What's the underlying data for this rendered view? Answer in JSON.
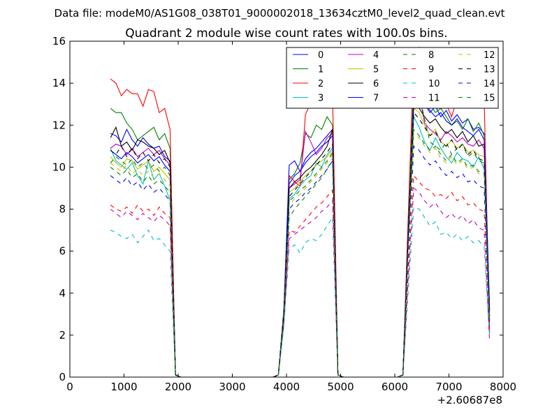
{
  "figure": {
    "suptitle": "Data file: modeM0/AS1G08_038T01_9000002018_13634cztM0_level2_quad_clean.evt",
    "offset_label": "+2.60687e8"
  },
  "chart_data": {
    "type": "line",
    "title": "Quadrant 2 module wise count rates with 100.0s bins.",
    "xlabel": "",
    "ylabel": "",
    "xlim": [
      0,
      8000
    ],
    "ylim": [
      0,
      16
    ],
    "x_offset": 260687000,
    "xticks": [
      0,
      1000,
      2000,
      3000,
      4000,
      5000,
      6000,
      7000,
      8000
    ],
    "yticks": [
      0,
      2,
      4,
      6,
      8,
      10,
      12,
      14,
      16
    ],
    "grid": false,
    "legend_position": "top-right",
    "legend_columns": 4,
    "x": [
      750,
      850,
      950,
      1050,
      1150,
      1250,
      1350,
      1450,
      1550,
      1650,
      1750,
      1850,
      1950,
      2050,
      2150,
      2250,
      2350,
      2450,
      2550,
      2650,
      2750,
      2850,
      2950,
      3050,
      3150,
      3250,
      3350,
      3450,
      3550,
      3650,
      3750,
      3850,
      3950,
      4050,
      4150,
      4250,
      4350,
      4450,
      4550,
      4650,
      4750,
      4850,
      4950,
      5050,
      5150,
      5250,
      5350,
      5450,
      5550,
      5650,
      5750,
      5850,
      5950,
      6050,
      6150,
      6250,
      6350,
      6450,
      6550,
      6650,
      6750,
      6850,
      6950,
      7050,
      7150,
      7250,
      7350,
      7450,
      7550,
      7650,
      7750
    ],
    "series": [
      {
        "name": "0",
        "color": "#0000ff",
        "dash": "solid",
        "values": [
          11.6,
          11.5,
          11.2,
          11.8,
          11.3,
          11.0,
          11.4,
          11.1,
          10.9,
          11.0,
          10.5,
          10.3,
          0.1,
          0,
          0,
          0,
          0,
          0,
          0,
          0,
          0,
          0,
          0,
          0,
          0,
          0,
          0,
          0,
          0,
          0,
          0,
          0.1,
          3.0,
          9.2,
          9.6,
          9.8,
          10.4,
          10.7,
          10.9,
          11.2,
          11.5,
          11.8,
          0.1,
          0,
          0,
          0,
          0,
          0,
          0,
          0,
          0,
          0,
          0,
          0,
          0.1,
          7.0,
          13.4,
          13.8,
          13.0,
          12.6,
          12.9,
          12.4,
          12.7,
          12.2,
          12.5,
          12.1,
          12.3,
          11.8,
          11.9,
          11.6,
          3.2
        ]
      },
      {
        "name": "1",
        "color": "#008000",
        "dash": "solid",
        "values": [
          12.8,
          12.6,
          12.6,
          12.1,
          11.8,
          11.3,
          11.5,
          11.7,
          11.9,
          11.3,
          11.6,
          10.9,
          0.1,
          0,
          0,
          0,
          0,
          0,
          0,
          0,
          0,
          0,
          0,
          0,
          0,
          0,
          0,
          0,
          0,
          0,
          0,
          0.1,
          3.2,
          9.4,
          9.7,
          10.2,
          11.6,
          11.4,
          12.0,
          11.8,
          12.4,
          12.0,
          0.1,
          0,
          0,
          0,
          0,
          0,
          0,
          0,
          0,
          0,
          0,
          0,
          0.1,
          7.2,
          14.0,
          13.6,
          13.2,
          13.0,
          12.6,
          12.8,
          12.4,
          12.0,
          12.2,
          11.8,
          12.3,
          11.7,
          12.1,
          11.5,
          3.4
        ]
      },
      {
        "name": "2",
        "color": "#ff0000",
        "dash": "solid",
        "values": [
          14.2,
          14.0,
          13.4,
          13.7,
          13.5,
          13.5,
          12.9,
          13.7,
          13.6,
          12.6,
          12.8,
          11.8,
          0.1,
          0,
          0,
          0,
          0,
          0,
          0,
          0,
          0,
          0,
          0,
          0,
          0,
          0,
          0,
          0,
          0,
          0,
          0,
          0.1,
          3.1,
          9.6,
          9.3,
          9.1,
          12.5,
          13.1,
          13.5,
          13.3,
          13.4,
          13.5,
          0.1,
          0,
          0,
          0,
          0,
          0,
          0,
          0,
          0,
          0,
          0,
          0,
          0.1,
          7.8,
          15.2,
          15.7,
          14.3,
          13.3,
          13.8,
          12.8,
          13.0,
          12.4,
          13.3,
          13.6,
          13.4,
          13.9,
          13.4,
          13.3,
          2.1
        ]
      },
      {
        "name": "3",
        "color": "#00bfbf",
        "dash": "solid",
        "values": [
          10.9,
          10.3,
          10.1,
          9.9,
          10.2,
          9.6,
          9.2,
          10.3,
          9.4,
          9.7,
          9.1,
          8.4,
          0.1,
          0,
          0,
          0,
          0,
          0,
          0,
          0,
          0,
          0,
          0,
          0,
          0,
          0,
          0,
          0,
          0,
          0,
          0,
          0.1,
          2.8,
          8.5,
          8.7,
          9.1,
          9.4,
          9.6,
          10.2,
          10.0,
          10.6,
          10.9,
          0.1,
          0,
          0,
          0,
          0,
          0,
          0,
          0,
          0,
          0,
          0,
          0,
          0.1,
          6.6,
          12.4,
          11.9,
          11.2,
          10.8,
          11.4,
          10.9,
          10.5,
          10.2,
          10.7,
          10.4,
          10.3,
          10.0,
          10.5,
          9.9,
          2.8
        ]
      },
      {
        "name": "4",
        "color": "#bf00bf",
        "dash": "solid",
        "values": [
          10.9,
          11.1,
          11.0,
          10.6,
          10.9,
          10.5,
          10.7,
          10.9,
          10.6,
          10.8,
          10.4,
          10.1,
          0.1,
          0,
          0,
          0,
          0,
          0,
          0,
          0,
          0,
          0,
          0,
          0,
          0,
          0,
          0,
          0,
          0,
          0,
          0,
          0.1,
          3.0,
          9.0,
          9.2,
          9.4,
          11.7,
          11.2,
          10.6,
          10.9,
          11.4,
          11.6,
          0.1,
          0,
          0,
          0,
          0,
          0,
          0,
          0,
          0,
          0,
          0,
          0,
          0.1,
          6.9,
          13.2,
          13.5,
          12.1,
          11.8,
          11.6,
          11.3,
          11.7,
          11.5,
          11.2,
          11.4,
          11.1,
          11.0,
          11.3,
          10.9,
          3.0
        ]
      },
      {
        "name": "5",
        "color": "#bfbf00",
        "dash": "solid",
        "values": [
          10.5,
          10.2,
          10.0,
          10.4,
          10.3,
          9.9,
          10.1,
          10.3,
          9.8,
          10.0,
          9.7,
          9.4,
          0.1,
          0,
          0,
          0,
          0,
          0,
          0,
          0,
          0,
          0,
          0,
          0,
          0,
          0,
          0,
          0,
          0,
          0,
          0,
          0.1,
          2.9,
          8.8,
          9.0,
          9.3,
          9.6,
          9.8,
          10.1,
          10.3,
          10.5,
          10.8,
          0.1,
          0,
          0,
          0,
          0,
          0,
          0,
          0,
          0,
          0,
          0,
          0,
          0.1,
          6.7,
          12.8,
          12.6,
          12.0,
          11.5,
          11.8,
          11.2,
          11.0,
          11.3,
          10.9,
          11.1,
          10.7,
          10.8,
          10.6,
          10.5,
          2.9
        ]
      },
      {
        "name": "6",
        "color": "#000000",
        "dash": "solid",
        "values": [
          11.4,
          11.9,
          11.0,
          11.2,
          10.8,
          11.3,
          11.2,
          11.0,
          10.9,
          10.6,
          10.8,
          10.2,
          0.1,
          0,
          0,
          0,
          0,
          0,
          0,
          0,
          0,
          0,
          0,
          0,
          0,
          0,
          0,
          0,
          0,
          0,
          0,
          0.1,
          3.1,
          9.0,
          9.3,
          9.5,
          9.8,
          10.0,
          10.3,
          10.6,
          11.0,
          11.8,
          0.1,
          0,
          0,
          0,
          0,
          0,
          0,
          0,
          0,
          0,
          0,
          0,
          0.1,
          7.0,
          13.0,
          12.8,
          12.4,
          12.1,
          12.3,
          11.9,
          11.6,
          11.8,
          11.4,
          11.7,
          11.2,
          11.5,
          11.0,
          11.1,
          3.1
        ]
      },
      {
        "name": "7",
        "color": "#0000ff",
        "dash": "solid",
        "values": [
          10.8,
          10.6,
          10.4,
          10.7,
          10.5,
          10.2,
          10.4,
          10.6,
          10.3,
          10.5,
          10.1,
          9.8,
          0.1,
          0,
          0,
          0,
          0,
          0,
          0,
          0,
          0,
          0,
          0,
          0,
          0,
          0,
          0,
          0,
          0,
          0,
          0,
          0.1,
          3.0,
          10.1,
          10.3,
          9.8,
          10.2,
          10.5,
          10.7,
          11.0,
          11.2,
          11.5,
          0.1,
          0,
          0,
          0,
          0,
          0,
          0,
          0,
          0,
          0,
          0,
          0,
          0.1,
          7.1,
          13.6,
          14.0,
          13.1,
          12.7,
          12.4,
          12.6,
          12.2,
          12.0,
          12.3,
          11.9,
          11.7,
          11.5,
          11.8,
          11.3,
          3.2
        ]
      },
      {
        "name": "8",
        "color": "#008000",
        "dash": "dashed",
        "values": [
          10.2,
          10.5,
          10.3,
          10.1,
          10.4,
          10.0,
          10.2,
          9.9,
          10.1,
          9.8,
          10.0,
          9.6,
          0.1,
          0,
          0,
          0,
          0,
          0,
          0,
          0,
          0,
          0,
          0,
          0,
          0,
          0,
          0,
          0,
          0,
          0,
          0,
          0.1,
          2.8,
          7.6,
          8.0,
          8.3,
          8.6,
          8.9,
          9.2,
          9.5,
          9.9,
          10.4,
          0.1,
          0,
          0,
          0,
          0,
          0,
          0,
          0,
          0,
          0,
          0,
          0,
          0.1,
          6.5,
          14.2,
          13.5,
          12.3,
          11.2,
          11.0,
          10.8,
          11.2,
          10.6,
          10.9,
          11.1,
          10.5,
          10.7,
          10.3,
          10.2,
          2.7
        ]
      },
      {
        "name": "9",
        "color": "#ff0000",
        "dash": "dashed",
        "values": [
          8.2,
          8.0,
          7.9,
          8.1,
          7.8,
          8.2,
          7.9,
          8.0,
          7.7,
          8.1,
          7.8,
          7.6,
          0.1,
          0,
          0,
          0,
          0,
          0,
          0,
          0,
          0,
          0,
          0,
          0,
          0,
          0,
          0,
          0,
          0,
          0,
          0,
          0.1,
          2.6,
          7.0,
          6.9,
          7.2,
          7.5,
          7.8,
          8.1,
          8.3,
          8.6,
          8.9,
          0.1,
          0,
          0,
          0,
          0,
          0,
          0,
          0,
          0,
          0,
          0,
          0,
          0.1,
          5.0,
          9.6,
          9.3,
          9.0,
          8.9,
          8.6,
          8.7,
          8.5,
          8.8,
          8.4,
          8.6,
          8.2,
          8.3,
          8.0,
          7.9,
          2.3
        ]
      },
      {
        "name": "10",
        "color": "#00bfbf",
        "dash": "dashed",
        "values": [
          7.0,
          6.9,
          6.7,
          6.6,
          6.8,
          6.4,
          6.7,
          7.0,
          6.5,
          6.6,
          6.3,
          6.0,
          0.1,
          0,
          0,
          0,
          0,
          0,
          0,
          0,
          0,
          0,
          0,
          0,
          0,
          0,
          0,
          0,
          0,
          0,
          0,
          0.1,
          2.4,
          6.1,
          6.3,
          5.9,
          6.4,
          6.6,
          6.5,
          6.8,
          7.2,
          7.6,
          0.1,
          0,
          0,
          0,
          0,
          0,
          0,
          0,
          0,
          0,
          0,
          0,
          0.1,
          4.2,
          8.1,
          8.0,
          7.6,
          7.2,
          7.4,
          6.8,
          6.9,
          6.6,
          6.8,
          6.5,
          6.7,
          6.4,
          6.5,
          6.2,
          1.9
        ]
      },
      {
        "name": "11",
        "color": "#bf00bf",
        "dash": "dashed",
        "values": [
          8.0,
          7.8,
          7.6,
          7.9,
          7.7,
          7.5,
          7.8,
          7.6,
          7.4,
          7.7,
          7.5,
          7.2,
          0.1,
          0,
          0,
          0,
          0,
          0,
          0,
          0,
          0,
          0,
          0,
          0,
          0,
          0,
          0,
          0,
          0,
          0,
          0,
          0.1,
          2.5,
          6.6,
          6.8,
          7.0,
          7.2,
          7.4,
          7.6,
          7.9,
          8.1,
          8.4,
          0.1,
          0,
          0,
          0,
          0,
          0,
          0,
          0,
          0,
          0,
          0,
          0,
          0.1,
          4.8,
          9.0,
          8.8,
          8.4,
          8.1,
          8.3,
          7.9,
          7.6,
          7.8,
          7.5,
          7.7,
          7.3,
          7.5,
          7.1,
          7.0,
          1.7
        ]
      },
      {
        "name": "12",
        "color": "#bfbf00",
        "dash": "dashed",
        "values": [
          10.2,
          10.0,
          9.8,
          10.1,
          9.7,
          9.9,
          9.6,
          9.8,
          9.5,
          9.7,
          9.4,
          9.1,
          0.1,
          0,
          0,
          0,
          0,
          0,
          0,
          0,
          0,
          0,
          0,
          0,
          0,
          0,
          0,
          0,
          0,
          0,
          0,
          0.1,
          2.9,
          8.2,
          8.5,
          8.7,
          9.0,
          9.3,
          9.6,
          9.9,
          10.2,
          10.6,
          0.1,
          0,
          0,
          0,
          0,
          0,
          0,
          0,
          0,
          0,
          0,
          0,
          0.1,
          6.2,
          11.6,
          11.4,
          11.0,
          10.7,
          10.9,
          10.4,
          10.2,
          10.5,
          10.1,
          10.3,
          9.9,
          10.0,
          9.7,
          9.6,
          2.6
        ]
      },
      {
        "name": "13",
        "color": "#000000",
        "dash": "dashed",
        "values": [
          10.8,
          10.6,
          11.0,
          10.5,
          10.9,
          10.4,
          10.7,
          10.3,
          10.6,
          10.2,
          10.4,
          10.0,
          0.1,
          0,
          0,
          0,
          0,
          0,
          0,
          0,
          0,
          0,
          0,
          0,
          0,
          0,
          0,
          0,
          0,
          0,
          0,
          0.1,
          3.0,
          8.6,
          8.9,
          9.2,
          9.5,
          9.8,
          10.1,
          10.4,
          10.7,
          11.1,
          0.1,
          0,
          0,
          0,
          0,
          0,
          0,
          0,
          0,
          0,
          0,
          0,
          0.1,
          6.8,
          12.6,
          12.3,
          11.9,
          11.5,
          11.7,
          11.2,
          11.0,
          11.3,
          10.8,
          11.1,
          10.6,
          10.8,
          10.4,
          10.3,
          2.9
        ]
      },
      {
        "name": "14",
        "color": "#0000ff",
        "dash": "dashed",
        "values": [
          9.6,
          9.4,
          9.2,
          9.5,
          9.1,
          9.3,
          8.9,
          9.2,
          8.8,
          9.0,
          8.7,
          8.4,
          0.1,
          0,
          0,
          0,
          0,
          0,
          0,
          0,
          0,
          0,
          0,
          0,
          0,
          0,
          0,
          0,
          0,
          0,
          0,
          0.1,
          2.7,
          8.0,
          8.3,
          8.5,
          8.8,
          9.0,
          9.3,
          9.6,
          9.9,
          10.3,
          0.1,
          0,
          0,
          0,
          0,
          0,
          0,
          0,
          0,
          0,
          0,
          0,
          0.1,
          5.8,
          11.0,
          10.8,
          10.4,
          10.1,
          10.3,
          9.9,
          9.6,
          9.8,
          9.5,
          9.7,
          9.3,
          9.4,
          9.1,
          9.0,
          2.5
        ]
      },
      {
        "name": "15",
        "color": "#008000",
        "dash": "dashed",
        "values": [
          10.0,
          9.8,
          9.6,
          9.9,
          9.5,
          9.7,
          9.3,
          9.6,
          9.2,
          9.4,
          9.1,
          8.8,
          0.1,
          0,
          0,
          0,
          0,
          0,
          0,
          0,
          0,
          0,
          0,
          0,
          0,
          0,
          0,
          0,
          0,
          0,
          0,
          0.1,
          2.8,
          8.4,
          8.6,
          8.9,
          9.1,
          9.4,
          9.7,
          10.0,
          10.3,
          10.7,
          0.1,
          0,
          0,
          0,
          0,
          0,
          0,
          0,
          0,
          0,
          0,
          0,
          0.1,
          6.3,
          11.8,
          11.5,
          11.1,
          10.8,
          11.0,
          10.6,
          10.3,
          10.6,
          10.2,
          10.4,
          10.0,
          10.1,
          9.8,
          9.7,
          2.7
        ]
      }
    ]
  }
}
